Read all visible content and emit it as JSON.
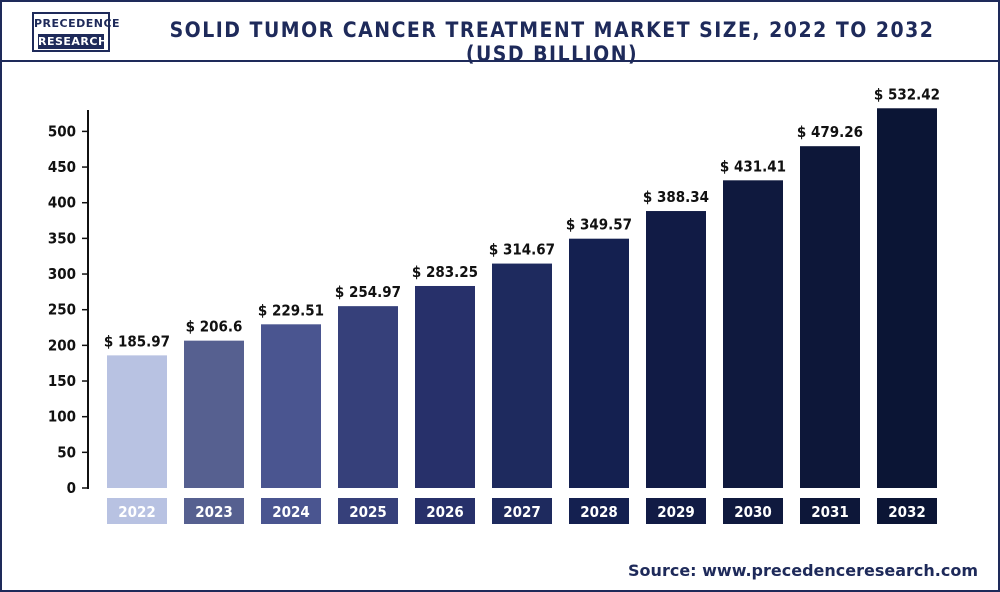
{
  "header": {
    "logo_top": "PRECEDENCE",
    "logo_bottom": "RESEARCH",
    "title": "SOLID TUMOR CANCER TREATMENT MARKET SIZE, 2022 TO 2032 (USD BILLION)"
  },
  "footer": {
    "source": "Source: www.precedenceresearch.com"
  },
  "chart_data": {
    "type": "bar",
    "title": "SOLID TUMOR CANCER TREATMENT MARKET SIZE, 2022 TO 2032 (USD BILLION)",
    "xlabel": "",
    "ylabel": "",
    "categories": [
      "2022",
      "2023",
      "2024",
      "2025",
      "2026",
      "2027",
      "2028",
      "2029",
      "2030",
      "2031",
      "2032"
    ],
    "values": [
      185.97,
      206.6,
      229.51,
      254.97,
      283.25,
      314.67,
      349.57,
      388.34,
      431.41,
      479.26,
      532.42
    ],
    "value_labels": [
      "$ 185.97",
      "$ 206.6",
      "$ 229.51",
      "$ 254.97",
      "$ 283.25",
      "$ 314.67",
      "$ 349.57",
      "$ 388.34",
      "$ 431.41",
      "$ 479.26",
      "$ 532.42"
    ],
    "ylim": [
      0,
      530
    ],
    "yticks": [
      0,
      50,
      100,
      150,
      200,
      250,
      300,
      350,
      400,
      450,
      500
    ],
    "grid": false,
    "legend": "none",
    "bar_colors": [
      "#b8c2e2",
      "#566090",
      "#4a5590",
      "#36407a",
      "#27306a",
      "#1e2a5e",
      "#142050",
      "#111b45",
      "#0f193e",
      "#0d1739",
      "#0b1535"
    ]
  }
}
